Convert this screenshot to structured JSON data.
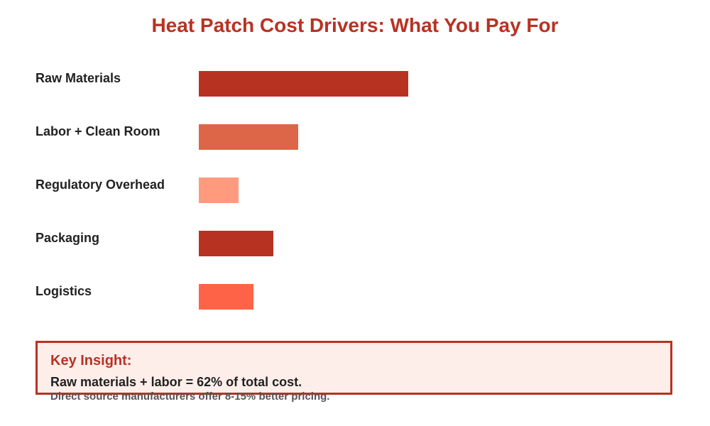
{
  "chart_data": {
    "type": "bar",
    "orientation": "horizontal",
    "title": "Heat Patch Cost Drivers: What You Pay For",
    "categories": [
      "Raw Materials",
      "Labor + Clean Room",
      "Regulatory Overhead",
      "Packaging",
      "Logistics"
    ],
    "values": [
      42,
      20,
      8,
      15,
      11
    ],
    "colors": [
      "#b83222",
      "#dd6548",
      "#ff9a7c",
      "#b83222",
      "#ff6347"
    ],
    "value_labels_shown": false,
    "axes_shown": false,
    "grid": false
  },
  "insight": {
    "title": "Key Insight:",
    "line1": "Raw materials + labor = 62% of total cost.",
    "line2": "Direct source manufacturers offer 8-15% better pricing."
  },
  "colors": {
    "title": "#b83222",
    "insight_border": "#b83222",
    "insight_background": "#fdeeea"
  }
}
